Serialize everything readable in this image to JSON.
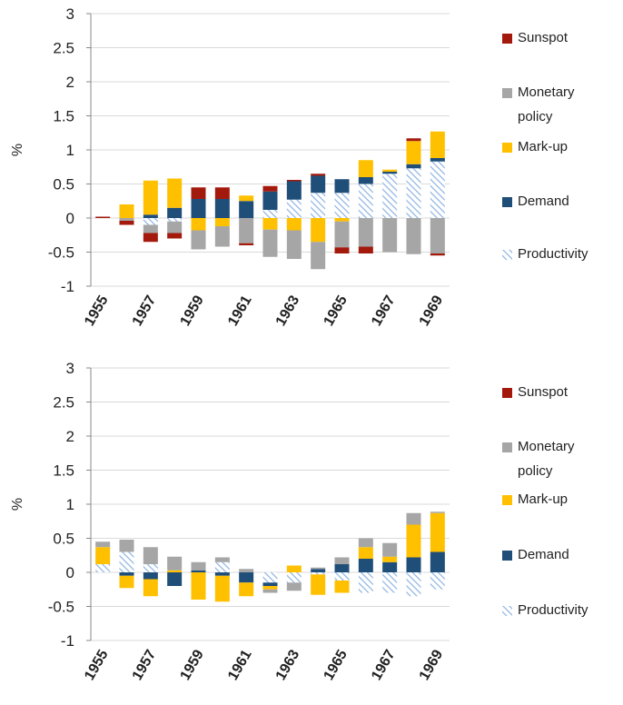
{
  "chart_data": [
    {
      "type": "bar",
      "stacked": true,
      "y_label": "%",
      "categories": [
        "1955",
        null,
        "1957",
        null,
        "1959",
        null,
        "1961",
        null,
        "1963",
        null,
        "1965",
        null,
        "1967",
        null,
        "1969"
      ],
      "ylim": [
        -1,
        3
      ],
      "yticks": [
        -1,
        -0.5,
        0,
        0.5,
        1,
        1.5,
        2,
        2.5,
        3
      ],
      "grid": true,
      "series": [
        {
          "name": "Sunspot",
          "color": "#a31a0d",
          "values": [
            0.02,
            -0.06,
            -0.13,
            -0.08,
            0.17,
            0.17,
            -0.03,
            0.08,
            0.02,
            0.03,
            -0.09,
            -0.1,
            0,
            0.04,
            -0.03
          ]
        },
        {
          "name": "Monetary policy",
          "color": "#a6a6a6",
          "values": [
            0,
            -0.04,
            -0.12,
            -0.17,
            -0.28,
            -0.3,
            -0.37,
            -0.4,
            -0.42,
            -0.4,
            -0.38,
            -0.42,
            -0.5,
            -0.53,
            -0.52
          ]
        },
        {
          "name": "Mark-up",
          "color": "#ffc000",
          "values": [
            0,
            0.2,
            0.5,
            0.43,
            -0.18,
            -0.12,
            0.08,
            -0.17,
            -0.18,
            -0.35,
            -0.05,
            0.25,
            0.03,
            0.34,
            0.39
          ]
        },
        {
          "name": "Demand",
          "color": "#1f4e79",
          "values": [
            0,
            0,
            0.05,
            0.15,
            0.28,
            0.28,
            0.25,
            0.27,
            0.27,
            0.25,
            0.2,
            0.1,
            0.03,
            0.06,
            0.05
          ]
        },
        {
          "name": "Productivity",
          "color": "#8db3e2",
          "hatch": true,
          "values": [
            0,
            0,
            -0.1,
            -0.05,
            0,
            0,
            0,
            0.12,
            0.27,
            0.37,
            0.37,
            0.5,
            0.65,
            0.73,
            0.83
          ]
        }
      ]
    },
    {
      "type": "bar",
      "stacked": true,
      "y_label": "%",
      "categories": [
        "1955",
        null,
        "1957",
        null,
        "1959",
        null,
        "1961",
        null,
        "1963",
        null,
        "1965",
        null,
        "1967",
        null,
        "1969"
      ],
      "ylim": [
        -1,
        3
      ],
      "yticks": [
        -1,
        -0.5,
        0,
        0.5,
        1,
        1.5,
        2,
        2.5,
        3
      ],
      "grid": true,
      "series": [
        {
          "name": "Sunspot",
          "color": "#a31a0d",
          "values": [
            0,
            0,
            0,
            0,
            0,
            0,
            0,
            0,
            0,
            0,
            0,
            0,
            0,
            0,
            0
          ]
        },
        {
          "name": "Monetary policy",
          "color": "#a6a6a6",
          "values": [
            0.08,
            0.18,
            0.25,
            0.2,
            0.12,
            0.07,
            0.05,
            -0.05,
            -0.12,
            0.02,
            0.1,
            0.13,
            0.2,
            0.17,
            0.02
          ]
        },
        {
          "name": "Mark-up",
          "color": "#ffc000",
          "values": [
            0.25,
            -0.18,
            -0.25,
            0.03,
            -0.4,
            -0.38,
            -0.2,
            -0.05,
            0.1,
            -0.3,
            -0.18,
            0.17,
            0.08,
            0.48,
            0.57
          ]
        },
        {
          "name": "Demand",
          "color": "#1f4e79",
          "values": [
            0,
            -0.05,
            -0.1,
            -0.2,
            0.03,
            -0.05,
            -0.15,
            -0.05,
            0,
            0.05,
            0.12,
            0.2,
            0.15,
            0.22,
            0.3
          ]
        },
        {
          "name": "Productivity",
          "color": "#8db3e2",
          "hatch": true,
          "values": [
            0.12,
            0.3,
            0.12,
            0,
            0,
            0.15,
            0,
            -0.15,
            -0.15,
            -0.03,
            -0.12,
            -0.3,
            -0.3,
            -0.35,
            -0.25
          ]
        }
      ]
    }
  ]
}
